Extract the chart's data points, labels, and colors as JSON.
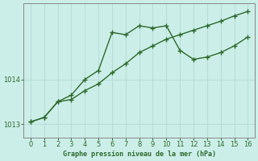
{
  "line1_x": [
    0,
    1,
    2,
    3,
    4,
    5,
    6,
    7,
    8,
    9,
    10,
    11,
    12,
    13,
    14,
    15,
    16
  ],
  "line1_y": [
    1013.05,
    1013.15,
    1013.5,
    1013.65,
    1014.0,
    1014.2,
    1015.05,
    1015.0,
    1015.2,
    1015.15,
    1015.2,
    1014.65,
    1014.45,
    1014.5,
    1014.6,
    1014.75,
    1014.95
  ],
  "line2_x": [
    0,
    1,
    2,
    3,
    4,
    5,
    6,
    7,
    8,
    9,
    10,
    11,
    12,
    13,
    14,
    15,
    16
  ],
  "line2_y": [
    1013.05,
    1013.15,
    1013.5,
    1013.55,
    1013.75,
    1013.9,
    1014.15,
    1014.35,
    1014.6,
    1014.75,
    1014.9,
    1015.0,
    1015.1,
    1015.2,
    1015.3,
    1015.42,
    1015.52
  ],
  "line_color": "#2d6a2d",
  "bg_color": "#cceee8",
  "grid_color": "#b8ddd8",
  "xlabel": "Graphe pression niveau de la mer (hPa)",
  "xlabel_color": "#2d6a2d",
  "tick_color": "#2d6a2d",
  "ylim": [
    1012.7,
    1015.7
  ],
  "xlim": [
    -0.5,
    16.5
  ],
  "yticks": [
    1013,
    1014
  ],
  "xticks": [
    0,
    1,
    2,
    3,
    4,
    5,
    6,
    7,
    8,
    9,
    10,
    11,
    12,
    13,
    14,
    15,
    16
  ],
  "marker": "+",
  "marker_size": 4,
  "line_width": 1.0
}
